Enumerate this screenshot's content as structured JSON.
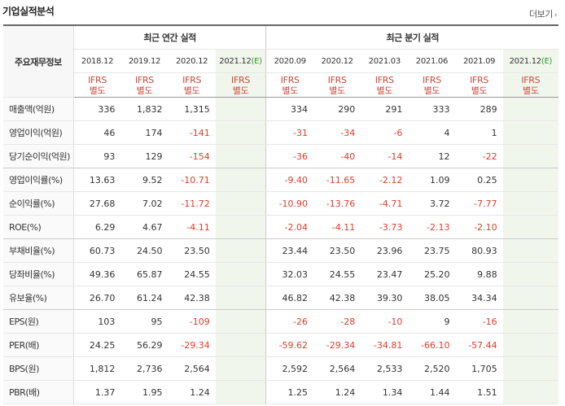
{
  "section_title": "기업실적분석",
  "more_link": "더보기",
  "table": {
    "corner_label": "주요재무정보",
    "annual_header": "최근 연간 실적",
    "quarter_header": "최근 분기 실적",
    "annual_dates": [
      "2018.12",
      "2019.12",
      "2020.12",
      "2021.12"
    ],
    "quarter_dates": [
      "2020.09",
      "2020.12",
      "2021.03",
      "2021.06",
      "2021.09",
      "2021.12"
    ],
    "estimate_mark": "(E)",
    "ifrs_top": "IFRS",
    "ifrs_bottom": "별도",
    "rows": [
      {
        "label": "매출액(억원)",
        "values": [
          "336",
          "1,832",
          "1,315",
          "",
          "334",
          "290",
          "291",
          "333",
          "289",
          ""
        ]
      },
      {
        "label": "영업이익(억원)",
        "values": [
          "46",
          "174",
          "-141",
          "",
          "-31",
          "-34",
          "-6",
          "4",
          "1",
          ""
        ]
      },
      {
        "label": "당기순이익(억원)",
        "values": [
          "93",
          "129",
          "-154",
          "",
          "-36",
          "-40",
          "-14",
          "12",
          "-22",
          ""
        ]
      },
      {
        "label": "영업이익률(%)",
        "values": [
          "13.63",
          "9.52",
          "-10.71",
          "",
          "-9.40",
          "-11.65",
          "-2.12",
          "1.09",
          "0.25",
          ""
        ]
      },
      {
        "label": "순이익률(%)",
        "values": [
          "27.68",
          "7.02",
          "-11.72",
          "",
          "-10.90",
          "-13.76",
          "-4.71",
          "3.72",
          "-7.77",
          ""
        ]
      },
      {
        "label": "ROE(%)",
        "values": [
          "6.29",
          "4.67",
          "-4.11",
          "",
          "-2.04",
          "-4.11",
          "-3.73",
          "-2.13",
          "-2.10",
          ""
        ]
      },
      {
        "label": "부채비율(%)",
        "values": [
          "60.73",
          "24.50",
          "23.50",
          "",
          "23.44",
          "23.50",
          "23.96",
          "23.75",
          "80.93",
          ""
        ]
      },
      {
        "label": "당좌비율(%)",
        "values": [
          "49.36",
          "65.87",
          "24.55",
          "",
          "32.03",
          "24.55",
          "23.47",
          "25.20",
          "9.88",
          ""
        ]
      },
      {
        "label": "유보율(%)",
        "values": [
          "26.70",
          "61.24",
          "42.38",
          "",
          "46.82",
          "42.38",
          "39.30",
          "38.05",
          "34.34",
          ""
        ]
      },
      {
        "label": "EPS(원)",
        "values": [
          "103",
          "95",
          "-109",
          "",
          "-26",
          "-28",
          "-10",
          "9",
          "-16",
          ""
        ]
      },
      {
        "label": "PER(배)",
        "values": [
          "24.25",
          "56.29",
          "-29.34",
          "",
          "-59.62",
          "-29.34",
          "-34.81",
          "-66.10",
          "-57.44",
          ""
        ]
      },
      {
        "label": "BPS(원)",
        "values": [
          "1,812",
          "2,736",
          "2,564",
          "",
          "2,592",
          "2,564",
          "2,533",
          "2,520",
          "1,705",
          ""
        ]
      },
      {
        "label": "PBR(배)",
        "values": [
          "1.37",
          "1.95",
          "1.24",
          "",
          "1.25",
          "1.24",
          "1.34",
          "1.44",
          "1.51",
          ""
        ]
      }
    ]
  },
  "colors": {
    "negative": "#e03c2a",
    "estimate_shade": "#f1f6ec",
    "ifrs": "#c84a3a",
    "estimate_mark": "#2a9a2a"
  }
}
